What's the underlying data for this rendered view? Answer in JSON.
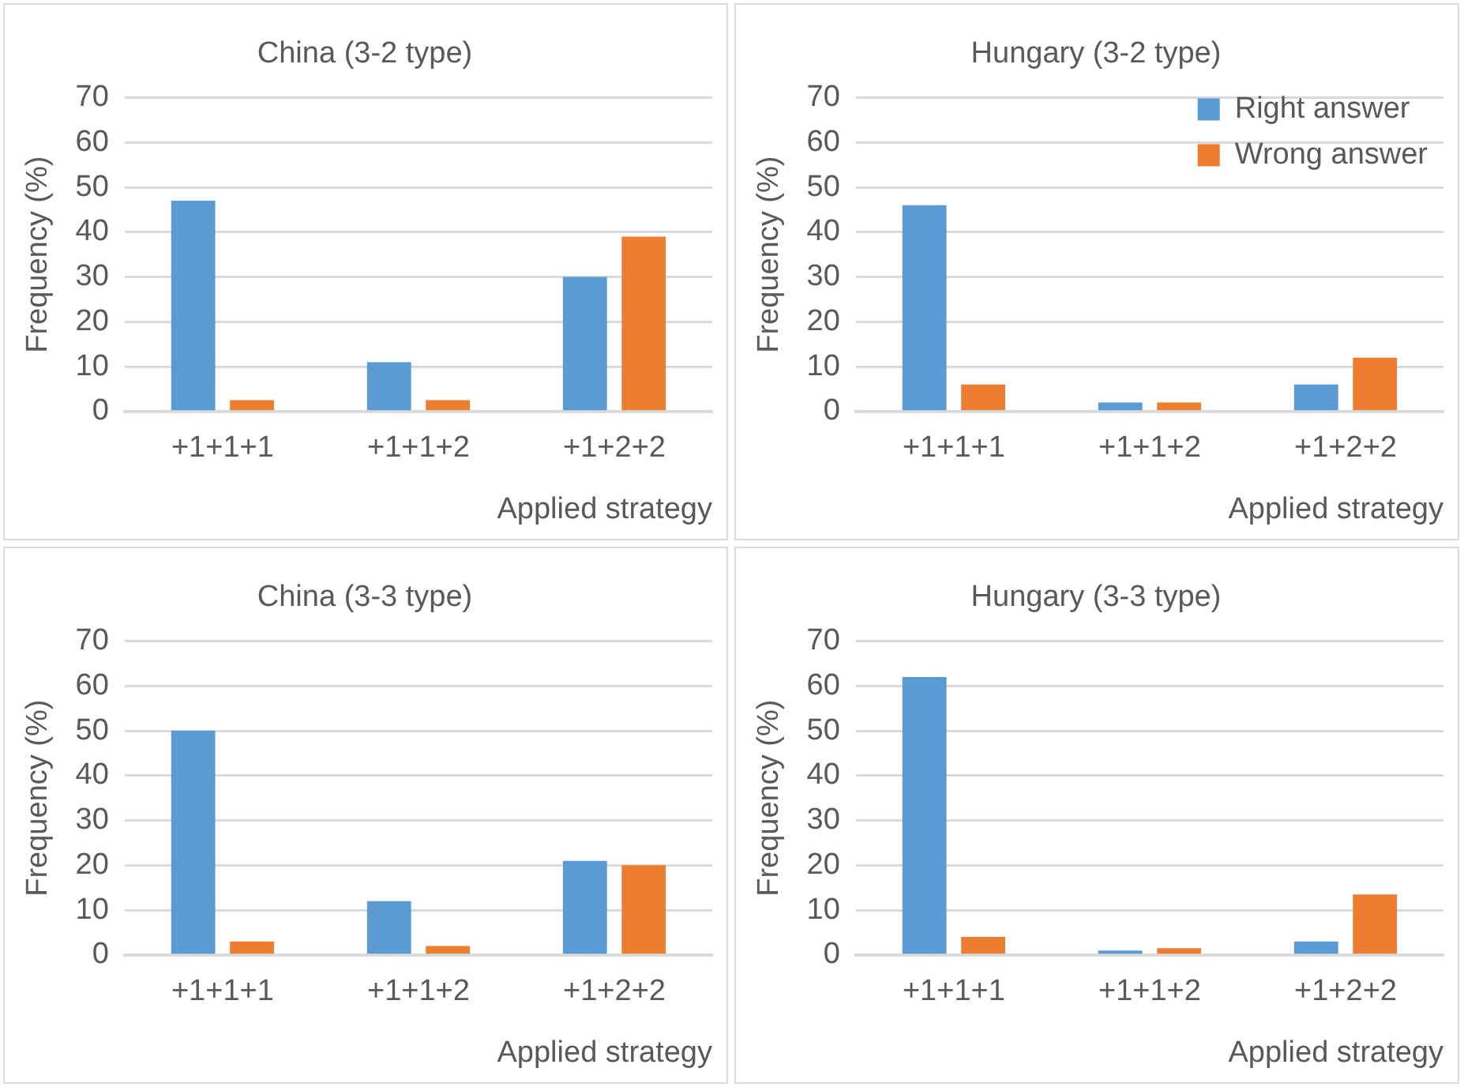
{
  "chart_data": [
    {
      "type": "bar",
      "title": "China (3-2 type)",
      "xlabel": "Applied strategy",
      "ylabel": "Frequency (%)",
      "categories": [
        "+1+1+1",
        "+1+1+2",
        "+1+2+2"
      ],
      "series": [
        {
          "color": "#5b9bd5",
          "values": [
            47,
            11,
            30
          ]
        },
        {
          "color": "#ed7d31",
          "values": [
            2.5,
            2.5,
            39
          ]
        }
      ],
      "ylim": [
        0,
        70
      ],
      "yticks": [
        0,
        10,
        20,
        30,
        40,
        50,
        60,
        70
      ],
      "grid": "y",
      "legend": false
    },
    {
      "type": "bar",
      "title": "Hungary (3-2 type)",
      "xlabel": "Applied strategy",
      "ylabel": "Frequency (%)",
      "categories": [
        "+1+1+1",
        "+1+1+2",
        "+1+2+2"
      ],
      "series": [
        {
          "name": "Right answer",
          "color": "#5b9bd5",
          "values": [
            46,
            2,
            6
          ]
        },
        {
          "name": "Wrong answer",
          "color": "#ed7d31",
          "values": [
            6,
            2,
            12
          ]
        }
      ],
      "ylim": [
        0,
        70
      ],
      "yticks": [
        0,
        10,
        20,
        30,
        40,
        50,
        60,
        70
      ],
      "grid": "y",
      "legend": "top right"
    },
    {
      "type": "bar",
      "title": "China (3-3 type)",
      "xlabel": "Applied strategy",
      "ylabel": "Frequency (%)",
      "categories": [
        "+1+1+1",
        "+1+1+2",
        "+1+2+2"
      ],
      "series": [
        {
          "color": "#5b9bd5",
          "values": [
            50,
            12,
            21
          ]
        },
        {
          "color": "#ed7d31",
          "values": [
            3,
            2,
            20
          ]
        }
      ],
      "ylim": [
        0,
        70
      ],
      "yticks": [
        0,
        10,
        20,
        30,
        40,
        50,
        60,
        70
      ],
      "grid": "y",
      "legend": false
    },
    {
      "type": "bar",
      "title": "Hungary (3-3 type)",
      "xlabel": "Applied strategy",
      "ylabel": "Frequency (%)",
      "categories": [
        "+1+1+1",
        "+1+1+2",
        "+1+2+2"
      ],
      "series": [
        {
          "color": "#5b9bd5",
          "values": [
            62,
            1,
            3
          ]
        },
        {
          "color": "#ed7d31",
          "values": [
            4,
            1.5,
            13.5
          ]
        }
      ],
      "ylim": [
        0,
        70
      ],
      "yticks": [
        0,
        10,
        20,
        30,
        40,
        50,
        60,
        70
      ],
      "grid": "y",
      "legend": false
    }
  ]
}
